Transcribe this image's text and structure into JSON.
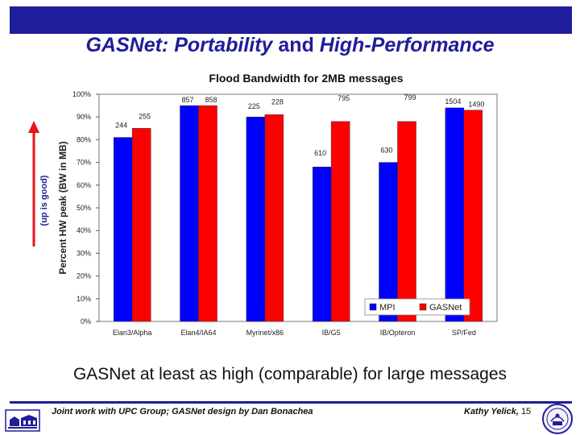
{
  "slide": {
    "title_part1": "GASNet: Portability ",
    "title_part2": "and",
    "title_part3": " High-Performance",
    "subtitle": "GASNet at least as high (comparable) for large messages",
    "footer_left": "Joint work with UPC Group; GASNet design by Dan Bonachea",
    "footer_right": "Kathy Yelick,",
    "page_number": "15",
    "up_is_good": "(up is good)"
  },
  "colors": {
    "brand": "#1f1d99",
    "mpi": "#0000ff",
    "gasnet": "#ff0000",
    "arrow": "#e8141b"
  },
  "chart_data": {
    "type": "bar",
    "title": "Flood Bandwidth for 2MB messages",
    "ylabel": "Percent HW peak (BW in MB)",
    "xlabel": "",
    "ylim": [
      0,
      100
    ],
    "yticks": [
      "0%",
      "10%",
      "20%",
      "30%",
      "40%",
      "50%",
      "60%",
      "70%",
      "80%",
      "90%",
      "100%"
    ],
    "categories": [
      "Elan3/Alpha",
      "Elan4/IA64",
      "Myrinet/x86",
      "IB/G5",
      "IB/Opteron",
      "SP/Fed"
    ],
    "series": [
      {
        "name": "MPI",
        "values": [
          81,
          95,
          90,
          68,
          70,
          94
        ],
        "labels": [
          "244",
          "857",
          "225",
          "610",
          "630",
          "1504"
        ]
      },
      {
        "name": "GASNet",
        "values": [
          85,
          95,
          91,
          88,
          88,
          93
        ],
        "labels": [
          "255",
          "858",
          "228",
          "795",
          "799",
          "1490"
        ]
      }
    ],
    "legend": "bottom-right"
  }
}
